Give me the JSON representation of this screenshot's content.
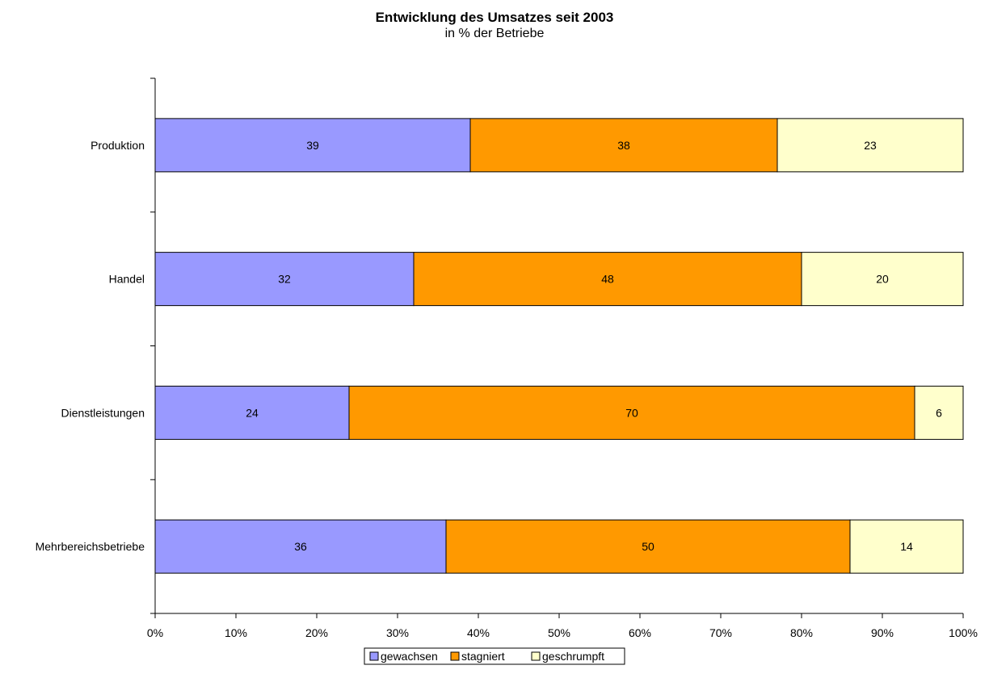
{
  "chart_data": {
    "type": "bar",
    "orientation": "horizontal",
    "stacked": "percent",
    "title": "Entwicklung des Umsatzes seit 2003",
    "subtitle": "in % der Betriebe",
    "categories": [
      "Produktion",
      "Handel",
      "Dienstleistungen",
      "Mehrbereichsbetriebe"
    ],
    "series": [
      {
        "name": "gewachsen",
        "color": "#9999ff",
        "values": [
          39,
          32,
          24,
          36
        ]
      },
      {
        "name": "stagniert",
        "color": "#ff9900",
        "values": [
          38,
          48,
          70,
          50
        ]
      },
      {
        "name": "geschrumpft",
        "color": "#ffffcc",
        "values": [
          23,
          20,
          6,
          14
        ]
      }
    ],
    "xlim": [
      0,
      100
    ],
    "x_ticks": [
      "0%",
      "10%",
      "20%",
      "30%",
      "40%",
      "50%",
      "60%",
      "70%",
      "80%",
      "90%",
      "100%"
    ],
    "grid": false,
    "legend_position": "bottom",
    "data_labels": true
  }
}
